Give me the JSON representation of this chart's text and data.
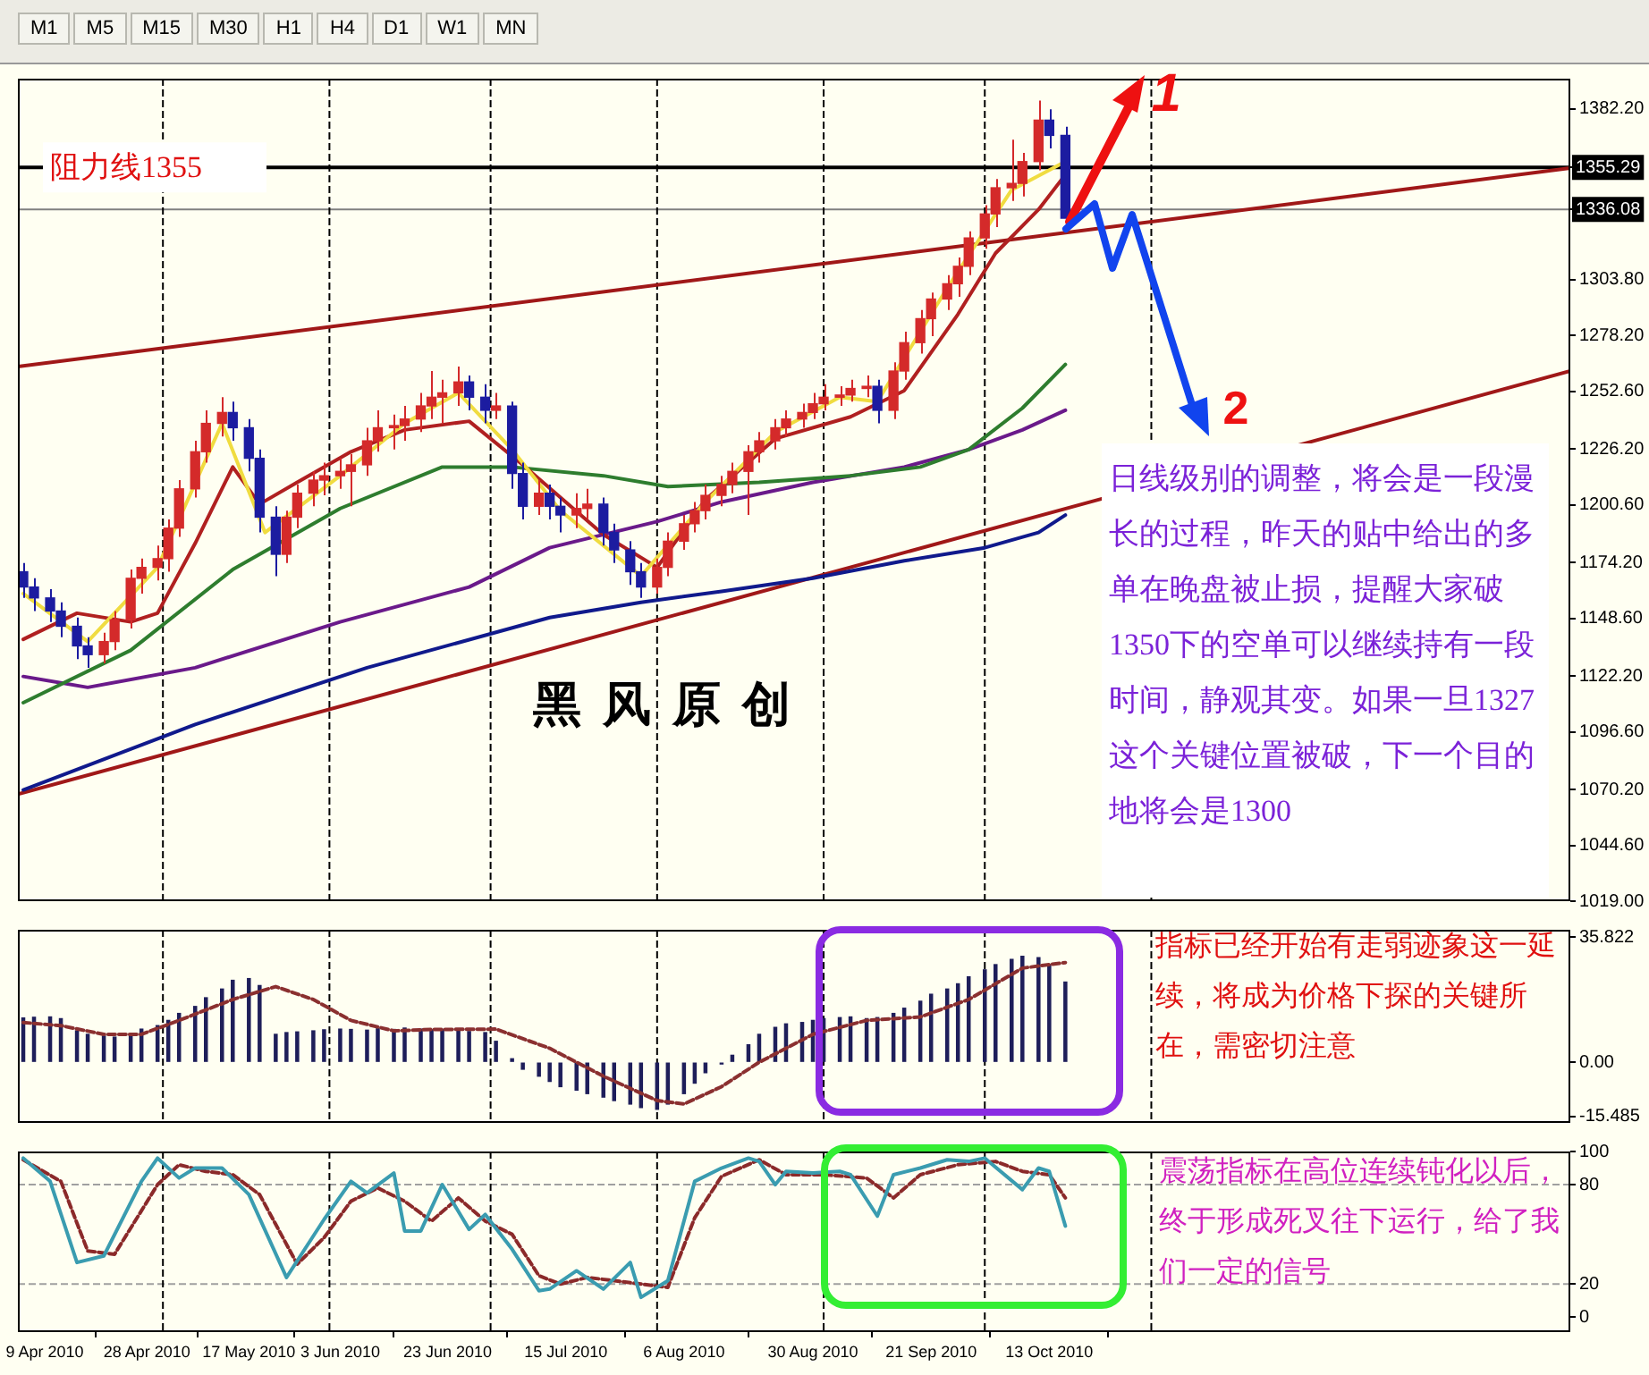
{
  "chart_data": [
    {
      "type": "other",
      "annotations": [
        "M1",
        "M5",
        "M15",
        "M30",
        "H1",
        "H4",
        "D1",
        "W1",
        "MN"
      ]
    },
    {
      "type": "candlestick",
      "x": [
        "2010-04-05",
        "2010-04-07",
        "2010-04-10",
        "2010-04-12",
        "2010-04-15",
        "2010-04-17",
        "2010-04-20",
        "2010-04-22",
        "2010-04-25",
        "2010-04-27",
        "2010-04-30",
        "2010-05-02",
        "2010-05-04",
        "2010-05-07",
        "2010-05-09",
        "2010-05-12",
        "2010-05-14",
        "2010-05-17",
        "2010-05-19",
        "2010-05-22",
        "2010-05-24",
        "2010-05-26",
        "2010-05-29",
        "2010-05-31",
        "2010-06-03",
        "2010-06-05",
        "2010-06-08",
        "2010-06-10",
        "2010-06-13",
        "2010-06-15",
        "2010-06-18",
        "2010-06-20",
        "2010-06-22",
        "2010-06-25",
        "2010-06-27",
        "2010-06-30",
        "2010-07-02",
        "2010-07-05",
        "2010-07-07",
        "2010-07-10",
        "2010-07-12",
        "2010-07-14",
        "2010-07-17",
        "2010-07-19",
        "2010-07-22",
        "2010-07-24",
        "2010-07-27",
        "2010-07-29",
        "2010-08-01",
        "2010-08-03",
        "2010-08-06",
        "2010-08-08",
        "2010-08-10",
        "2010-08-13",
        "2010-08-15",
        "2010-08-18",
        "2010-08-20",
        "2010-08-23",
        "2010-08-25",
        "2010-08-28",
        "2010-08-30",
        "2010-09-01",
        "2010-09-04",
        "2010-09-06",
        "2010-09-09",
        "2010-09-11",
        "2010-09-14",
        "2010-09-16",
        "2010-09-19",
        "2010-09-21",
        "2010-09-24",
        "2010-09-26",
        "2010-09-28",
        "2010-10-01",
        "2010-10-03",
        "2010-10-06",
        "2010-10-08",
        "2010-10-11",
        "2010-10-13",
        "2010-10-16"
      ],
      "ohlc": [
        [
          1170,
          1174,
          1158,
          1163
        ],
        [
          1163,
          1167,
          1152,
          1158
        ],
        [
          1158,
          1162,
          1147,
          1152
        ],
        [
          1152,
          1156,
          1140,
          1145
        ],
        [
          1145,
          1149,
          1130,
          1136
        ],
        [
          1136,
          1140,
          1126,
          1132
        ],
        [
          1132,
          1142,
          1128,
          1138
        ],
        [
          1138,
          1152,
          1134,
          1148
        ],
        [
          1148,
          1171,
          1144,
          1167
        ],
        [
          1167,
          1176,
          1160,
          1172
        ],
        [
          1172,
          1182,
          1166,
          1176
        ],
        [
          1176,
          1194,
          1170,
          1190
        ],
        [
          1190,
          1212,
          1186,
          1208
        ],
        [
          1208,
          1230,
          1204,
          1225
        ],
        [
          1225,
          1244,
          1220,
          1238
        ],
        [
          1238,
          1250,
          1232,
          1243
        ],
        [
          1243,
          1248,
          1230,
          1236
        ],
        [
          1236,
          1240,
          1216,
          1222
        ],
        [
          1222,
          1226,
          1188,
          1195
        ],
        [
          1195,
          1200,
          1168,
          1178
        ],
        [
          1178,
          1198,
          1174,
          1195
        ],
        [
          1195,
          1210,
          1190,
          1206
        ],
        [
          1206,
          1216,
          1200,
          1212
        ],
        [
          1212,
          1220,
          1205,
          1214
        ],
        [
          1214,
          1222,
          1208,
          1216
        ],
        [
          1216,
          1224,
          1200,
          1219
        ],
        [
          1219,
          1236,
          1214,
          1230
        ],
        [
          1230,
          1244,
          1225,
          1236
        ],
        [
          1236,
          1242,
          1226,
          1237
        ],
        [
          1237,
          1246,
          1230,
          1240
        ],
        [
          1240,
          1252,
          1234,
          1246
        ],
        [
          1246,
          1262,
          1240,
          1250
        ],
        [
          1250,
          1258,
          1238,
          1252
        ],
        [
          1252,
          1264,
          1246,
          1257
        ],
        [
          1257,
          1260,
          1244,
          1250
        ],
        [
          1250,
          1256,
          1238,
          1244
        ],
        [
          1244,
          1252,
          1240,
          1246
        ],
        [
          1246,
          1248,
          1208,
          1215
        ],
        [
          1215,
          1220,
          1194,
          1200
        ],
        [
          1200,
          1212,
          1196,
          1206
        ],
        [
          1206,
          1210,
          1194,
          1200
        ],
        [
          1200,
          1204,
          1188,
          1196
        ],
        [
          1196,
          1206,
          1190,
          1199
        ],
        [
          1199,
          1208,
          1194,
          1201
        ],
        [
          1201,
          1204,
          1182,
          1188
        ],
        [
          1188,
          1192,
          1174,
          1180
        ],
        [
          1180,
          1184,
          1164,
          1170
        ],
        [
          1170,
          1174,
          1158,
          1163
        ],
        [
          1163,
          1176,
          1160,
          1172
        ],
        [
          1172,
          1188,
          1168,
          1184
        ],
        [
          1184,
          1196,
          1180,
          1192
        ],
        [
          1192,
          1202,
          1188,
          1198
        ],
        [
          1198,
          1210,
          1194,
          1205
        ],
        [
          1205,
          1214,
          1200,
          1210
        ],
        [
          1210,
          1220,
          1206,
          1216
        ],
        [
          1216,
          1228,
          1196,
          1225
        ],
        [
          1225,
          1234,
          1220,
          1230
        ],
        [
          1230,
          1240,
          1226,
          1236
        ],
        [
          1236,
          1244,
          1232,
          1240
        ],
        [
          1240,
          1247,
          1236,
          1243
        ],
        [
          1243,
          1252,
          1240,
          1247
        ],
        [
          1247,
          1256,
          1244,
          1250
        ],
        [
          1250,
          1255,
          1246,
          1251
        ],
        [
          1251,
          1258,
          1248,
          1254
        ],
        [
          1254,
          1260,
          1250,
          1255
        ],
        [
          1255,
          1258,
          1238,
          1244
        ],
        [
          1244,
          1266,
          1240,
          1262
        ],
        [
          1262,
          1280,
          1258,
          1275
        ],
        [
          1275,
          1290,
          1270,
          1286
        ],
        [
          1286,
          1298,
          1278,
          1295
        ],
        [
          1295,
          1306,
          1290,
          1302
        ],
        [
          1302,
          1314,
          1296,
          1310
        ],
        [
          1310,
          1326,
          1306,
          1323
        ],
        [
          1323,
          1338,
          1318,
          1334
        ],
        [
          1334,
          1350,
          1328,
          1346
        ],
        [
          1346,
          1368,
          1340,
          1348
        ],
        [
          1348,
          1362,
          1342,
          1358
        ],
        [
          1358,
          1386,
          1354,
          1377
        ],
        [
          1377,
          1382,
          1364,
          1370
        ],
        [
          1370,
          1374,
          1328,
          1332
        ]
      ],
      "colors": [
        "#1c1ca0",
        "#1c1ca0",
        "#1c1ca0",
        "#1c1ca0",
        "#1c1ca0",
        "#1c1ca0",
        "#d42a2a",
        "#d42a2a",
        "#d42a2a",
        "#d42a2a",
        "#d42a2a",
        "#d42a2a",
        "#d42a2a",
        "#d42a2a",
        "#d42a2a",
        "#d42a2a",
        "#1c1ca0",
        "#1c1ca0",
        "#1c1ca0",
        "#1c1ca0",
        "#d42a2a",
        "#d42a2a",
        "#d42a2a",
        "#d42a2a",
        "#d42a2a",
        "#d42a2a",
        "#d42a2a",
        "#d42a2a",
        "#d42a2a",
        "#d42a2a",
        "#d42a2a",
        "#d42a2a",
        "#d42a2a",
        "#d42a2a",
        "#1c1ca0",
        "#1c1ca0",
        "#d42a2a",
        "#1c1ca0",
        "#1c1ca0",
        "#d42a2a",
        "#1c1ca0",
        "#1c1ca0",
        "#d42a2a",
        "#d42a2a",
        "#1c1ca0",
        "#1c1ca0",
        "#1c1ca0",
        "#1c1ca0",
        "#d42a2a",
        "#d42a2a",
        "#d42a2a",
        "#d42a2a",
        "#d42a2a",
        "#d42a2a",
        "#d42a2a",
        "#d42a2a",
        "#d42a2a",
        "#d42a2a",
        "#d42a2a",
        "#d42a2a",
        "#d42a2a",
        "#d42a2a",
        "#d42a2a",
        "#d42a2a",
        "#d42a2a",
        "#1c1ca0",
        "#d42a2a",
        "#d42a2a",
        "#d42a2a",
        "#d42a2a",
        "#d42a2a",
        "#d42a2a",
        "#d42a2a",
        "#d42a2a",
        "#d42a2a",
        "#d42a2a",
        "#d42a2a",
        "#d42a2a",
        "#1c1ca0",
        "#1c1ca0"
      ],
      "series": [
        {
          "type": "line",
          "color": "#f0dc40",
          "x": [
            "2010-04-05",
            "2010-04-17",
            "2010-04-30",
            "2010-05-12",
            "2010-05-20",
            "2010-06-03",
            "2010-06-15",
            "2010-06-25",
            "2010-07-05",
            "2010-07-14",
            "2010-07-29",
            "2010-08-10",
            "2010-08-23",
            "2010-09-04",
            "2010-09-11",
            "2010-09-24",
            "2010-10-06",
            "2010-10-16"
          ],
          "values": [
            1160,
            1138,
            1172,
            1238,
            1188,
            1214,
            1238,
            1252,
            1226,
            1198,
            1168,
            1202,
            1234,
            1250,
            1248,
            1300,
            1345,
            1358
          ]
        },
        {
          "type": "line",
          "color": "#b02020",
          "x": [
            "2010-04-05",
            "2010-04-15",
            "2010-04-25",
            "2010-04-30",
            "2010-05-07",
            "2010-05-14",
            "2010-05-19",
            "2010-05-26",
            "2010-06-05",
            "2010-06-15",
            "2010-06-27",
            "2010-07-07",
            "2010-07-22",
            "2010-08-01",
            "2010-08-10",
            "2010-08-23",
            "2010-09-06",
            "2010-09-16",
            "2010-09-26",
            "2010-10-03",
            "2010-10-11",
            "2010-10-16"
          ],
          "values": [
            1139,
            1151,
            1147,
            1151,
            1183,
            1218,
            1201,
            1211,
            1225,
            1235,
            1239,
            1219,
            1187,
            1172,
            1203,
            1231,
            1241,
            1253,
            1288,
            1316,
            1336,
            1352
          ]
        },
        {
          "type": "line",
          "color": "#2e7d2e",
          "x": [
            "2010-04-05",
            "2010-04-25",
            "2010-05-14",
            "2010-06-03",
            "2010-06-22",
            "2010-07-05",
            "2010-07-22",
            "2010-08-03",
            "2010-08-20",
            "2010-09-06",
            "2010-09-19",
            "2010-09-28",
            "2010-10-08",
            "2010-10-16"
          ],
          "values": [
            1110,
            1134,
            1171,
            1199,
            1218,
            1218,
            1214,
            1209,
            1211,
            1214,
            1218,
            1226,
            1245,
            1265
          ]
        },
        {
          "type": "line",
          "color": "#6a1a8a",
          "x": [
            "2010-04-05",
            "2010-04-17",
            "2010-05-07",
            "2010-06-03",
            "2010-06-27",
            "2010-07-12",
            "2010-08-01",
            "2010-08-13",
            "2010-08-30",
            "2010-09-16",
            "2010-09-28",
            "2010-10-08",
            "2010-10-16"
          ],
          "values": [
            1122,
            1117,
            1126,
            1147,
            1163,
            1181,
            1193,
            1202,
            1211,
            1218,
            1226,
            1235,
            1244
          ]
        },
        {
          "type": "line",
          "color": "#101a8c",
          "x": [
            "2010-04-05",
            "2010-05-07",
            "2010-06-08",
            "2010-07-12",
            "2010-07-29",
            "2010-08-13",
            "2010-08-30",
            "2010-09-16",
            "2010-10-01",
            "2010-10-11",
            "2010-10-16"
          ],
          "values": [
            1070,
            1100,
            1126,
            1149,
            1156,
            1161,
            1167,
            1175,
            1181,
            1188,
            1196
          ]
        },
        {
          "type": "line",
          "color": "#a01818",
          "x": [
            "2010-04-04",
            "2011-01-18"
          ],
          "values": [
            1264,
            1355
          ]
        },
        {
          "type": "line",
          "color": "#a01818",
          "x": [
            "2010-04-04",
            "2011-01-18"
          ],
          "values": [
            1068,
            1262
          ]
        }
      ],
      "xlim": [
        "2010-04-04",
        "2011-01-18"
      ],
      "ylim": [
        1019,
        1396
      ],
      "yticks": [
        {
          "value": 1382.2,
          "label": "1382.20"
        },
        {
          "value": 1355.29,
          "label": "1355.29"
        },
        {
          "value": 1336.08,
          "label": "1336.08"
        },
        {
          "value": 1303.8,
          "label": "1303.80"
        },
        {
          "value": 1278.2,
          "label": "1278.20"
        },
        {
          "value": 1252.6,
          "label": "1252.60"
        },
        {
          "value": 1226.2,
          "label": "1226.20"
        },
        {
          "value": 1200.6,
          "label": "1200.60"
        },
        {
          "value": 1174.2,
          "label": "1174.20"
        },
        {
          "value": 1148.6,
          "label": "1148.60"
        },
        {
          "value": 1122.2,
          "label": "1122.20"
        },
        {
          "value": 1096.6,
          "label": "1096.60"
        },
        {
          "value": 1070.2,
          "label": "1070.20"
        },
        {
          "value": 1044.6,
          "label": "1044.60"
        },
        {
          "value": 1019,
          "label": "1019.00"
        }
      ],
      "tick_labels": "y",
      "grid": false,
      "legend": false,
      "marker": "none",
      "ref_lines": [
        {
          "axis": "y",
          "value": 1355.29,
          "label": "阻力线1355",
          "color": "#000000"
        },
        {
          "axis": "y",
          "value": 1336.08,
          "color": "#808080"
        },
        {
          "axis": "x",
          "value": "2010-05-01",
          "color": "#000000",
          "line_style": "dashed"
        },
        {
          "axis": "x",
          "value": "2010-06-01",
          "color": "#000000",
          "line_style": "dashed"
        },
        {
          "axis": "x",
          "value": "2010-07-01",
          "color": "#000000",
          "line_style": "dashed"
        },
        {
          "axis": "x",
          "value": "2010-08-01",
          "color": "#000000",
          "line_style": "dashed"
        },
        {
          "axis": "x",
          "value": "2010-09-01",
          "color": "#000000",
          "line_style": "dashed"
        },
        {
          "axis": "x",
          "value": "2010-10-01",
          "color": "#000000",
          "line_style": "dashed"
        },
        {
          "axis": "x",
          "value": "2010-11-01",
          "color": "#000000",
          "line_style": "dashed"
        }
      ],
      "annotations": [
        {
          "text": "1",
          "x": "2010-10-22",
          "y": 1355.29
        },
        {
          "text": "2",
          "x": "2010-11-11",
          "y": 1216
        },
        "黑风原创",
        "日线级别的调整，将会是一段漫长的过程，昨天的贴中给出的多单在晚盘被止损，提醒大家破1350下的空单可以继续持有一段时间，静观其变。如果一旦1327这个关键位置被破，下一个目的地将会是1300"
      ]
    },
    {
      "type": "bar",
      "series": [
        {
          "color": "#1e1e5a",
          "x": [
            "2010-04-05",
            "2010-04-07",
            "2010-04-10",
            "2010-04-12",
            "2010-04-15",
            "2010-04-17",
            "2010-04-20",
            "2010-04-22",
            "2010-04-25",
            "2010-04-27",
            "2010-04-30",
            "2010-05-02",
            "2010-05-04",
            "2010-05-07",
            "2010-05-09",
            "2010-05-12",
            "2010-05-14",
            "2010-05-17",
            "2010-05-19",
            "2010-05-22",
            "2010-05-24",
            "2010-05-26",
            "2010-05-29",
            "2010-05-31",
            "2010-06-03",
            "2010-06-05",
            "2010-06-08",
            "2010-06-10",
            "2010-06-13",
            "2010-06-15",
            "2010-06-18",
            "2010-06-20",
            "2010-06-22",
            "2010-06-25",
            "2010-06-27",
            "2010-06-30",
            "2010-07-02",
            "2010-07-05",
            "2010-07-07",
            "2010-07-10",
            "2010-07-12",
            "2010-07-14",
            "2010-07-17",
            "2010-07-19",
            "2010-07-22",
            "2010-07-24",
            "2010-07-27",
            "2010-07-29",
            "2010-08-01",
            "2010-08-03",
            "2010-08-06",
            "2010-08-08",
            "2010-08-10",
            "2010-08-13",
            "2010-08-15",
            "2010-08-18",
            "2010-08-20",
            "2010-08-23",
            "2010-08-25",
            "2010-08-28",
            "2010-08-30",
            "2010-09-01",
            "2010-09-04",
            "2010-09-06",
            "2010-09-09",
            "2010-09-11",
            "2010-09-14",
            "2010-09-16",
            "2010-09-19",
            "2010-09-21",
            "2010-09-24",
            "2010-09-26",
            "2010-09-28",
            "2010-10-01",
            "2010-10-03",
            "2010-10-06",
            "2010-10-08",
            "2010-10-11",
            "2010-10-13",
            "2010-10-16"
          ],
          "values": [
            12.7,
            12.9,
            13,
            12.5,
            9,
            8,
            7.5,
            7.2,
            7.8,
            9.5,
            10.5,
            12,
            14,
            16,
            18.5,
            21,
            23.5,
            24,
            22,
            8,
            8.5,
            8.7,
            9,
            9.3,
            9.5,
            9.4,
            9.2,
            9.6,
            9.4,
            9.8,
            9.5,
            9.3,
            9.4,
            9.2,
            8.8,
            8.5,
            6,
            1,
            -2,
            -4,
            -5.5,
            -7,
            -8,
            -9,
            -10,
            -11,
            -12,
            -13,
            -13.5,
            -12,
            -9,
            -6,
            -3,
            -0.5,
            2,
            5,
            8,
            10,
            11,
            11.4,
            12,
            12.5,
            12.8,
            13,
            12.5,
            12.8,
            14,
            15.5,
            17.5,
            19.5,
            21,
            22.5,
            24.5,
            26.5,
            28,
            29.5,
            30.4,
            30,
            28,
            23
          ]
        },
        {
          "type": "line",
          "color": "#8b3030",
          "line_style": "dashed",
          "x": [
            "2010-04-05",
            "2010-04-12",
            "2010-04-20",
            "2010-04-27",
            "2010-05-04",
            "2010-05-14",
            "2010-05-22",
            "2010-05-29",
            "2010-06-05",
            "2010-06-13",
            "2010-06-20",
            "2010-07-02",
            "2010-07-12",
            "2010-07-22",
            "2010-08-01",
            "2010-08-06",
            "2010-08-13",
            "2010-08-20",
            "2010-08-30",
            "2010-09-09",
            "2010-09-19",
            "2010-09-28",
            "2010-10-08",
            "2010-10-16"
          ],
          "values": [
            11.4,
            10.5,
            8,
            8,
            12,
            18,
            21.7,
            18,
            12,
            9,
            9.4,
            9.5,
            4,
            -4,
            -11,
            -12,
            -7,
            0,
            8,
            12,
            13,
            18,
            27,
            28.6
          ]
        }
      ],
      "xlim": [
        "2010-04-04",
        "2011-01-18"
      ],
      "ylim": [
        -17.4,
        38
      ],
      "yticks": [
        35.822,
        {
          "value": 0,
          "label": "0.00"
        },
        -15.485
      ],
      "tick_labels": "y",
      "grid": false,
      "legend": false,
      "marker": "none",
      "ref_lines": [
        {
          "axis": "x",
          "value": "2010-05-01",
          "color": "#000000",
          "line_style": "dashed"
        },
        {
          "axis": "x",
          "value": "2010-06-01",
          "color": "#000000",
          "line_style": "dashed"
        },
        {
          "axis": "x",
          "value": "2010-07-01",
          "color": "#000000",
          "line_style": "dashed"
        },
        {
          "axis": "x",
          "value": "2010-08-01",
          "color": "#000000",
          "line_style": "dashed"
        },
        {
          "axis": "x",
          "value": "2010-09-01",
          "color": "#000000",
          "line_style": "dashed"
        },
        {
          "axis": "x",
          "value": "2010-10-01",
          "color": "#000000",
          "line_style": "dashed"
        },
        {
          "axis": "x",
          "value": "2010-11-01",
          "color": "#000000",
          "line_style": "dashed"
        }
      ],
      "annotations": [
        "指标已经开始有走弱迹象这一延续，将成为价格下探的关键所在，需密切注意"
      ]
    },
    {
      "type": "line",
      "series": [
        {
          "color": "#3a9cb0",
          "x": [
            "2010-04-05",
            "2010-04-10",
            "2010-04-15",
            "2010-04-20",
            "2010-04-27",
            "2010-04-30",
            "2010-05-04",
            "2010-05-07",
            "2010-05-12",
            "2010-05-17",
            "2010-05-24",
            "2010-05-29",
            "2010-05-31",
            "2010-06-05",
            "2010-06-08",
            "2010-06-13",
            "2010-06-15",
            "2010-06-18",
            "2010-06-22",
            "2010-06-27",
            "2010-06-30",
            "2010-07-05",
            "2010-07-10",
            "2010-07-12",
            "2010-07-17",
            "2010-07-22",
            "2010-07-27",
            "2010-07-29",
            "2010-08-03",
            "2010-08-08",
            "2010-08-13",
            "2010-08-18",
            "2010-08-20",
            "2010-08-23",
            "2010-08-25",
            "2010-08-30",
            "2010-09-04",
            "2010-09-06",
            "2010-09-11",
            "2010-09-14",
            "2010-09-19",
            "2010-09-24",
            "2010-09-28",
            "2010-10-01",
            "2010-10-08",
            "2010-10-11",
            "2010-10-13",
            "2010-10-16"
          ],
          "values": [
            96,
            82,
            33,
            37,
            82,
            96,
            84,
            90,
            90,
            74,
            24,
            49,
            59,
            82,
            75,
            87,
            52,
            52,
            80,
            53,
            62,
            41,
            16,
            17,
            28,
            17,
            33,
            12,
            22,
            82,
            90,
            96,
            94,
            80,
            88,
            87,
            88,
            86,
            61,
            86,
            90,
            95,
            94,
            96,
            77,
            90,
            88,
            55
          ]
        },
        {
          "color": "#8b2a2a",
          "line_style": "dashed",
          "x": [
            "2010-04-05",
            "2010-04-12",
            "2010-04-17",
            "2010-04-22",
            "2010-04-30",
            "2010-05-04",
            "2010-05-09",
            "2010-05-14",
            "2010-05-19",
            "2010-05-26",
            "2010-05-31",
            "2010-06-05",
            "2010-06-10",
            "2010-06-15",
            "2010-06-20",
            "2010-06-25",
            "2010-06-30",
            "2010-07-05",
            "2010-07-10",
            "2010-07-14",
            "2010-07-19",
            "2010-07-24",
            "2010-07-29",
            "2010-08-03",
            "2010-08-08",
            "2010-08-13",
            "2010-08-20",
            "2010-08-25",
            "2010-09-01",
            "2010-09-09",
            "2010-09-14",
            "2010-09-19",
            "2010-09-26",
            "2010-10-03",
            "2010-10-08",
            "2010-10-13",
            "2010-10-16"
          ],
          "values": [
            95,
            82,
            40,
            38,
            80,
            92,
            88,
            86,
            74,
            32,
            48,
            70,
            78,
            70,
            58,
            72,
            58,
            50,
            25,
            20,
            24,
            22,
            20,
            18,
            60,
            85,
            95,
            86,
            86,
            84,
            72,
            86,
            92,
            94,
            88,
            86,
            72
          ]
        }
      ],
      "xlim": [
        "2010-04-04",
        "2011-01-18"
      ],
      "ylim": [
        -9,
        100
      ],
      "yticks": [
        0,
        20,
        80,
        100
      ],
      "xticks": [
        {
          "value": "2010-04-09",
          "label": "9 Apr 2010"
        },
        {
          "value": "2010-04-28",
          "label": "28 Apr 2010"
        },
        {
          "value": "2010-05-17",
          "label": "17 May 2010"
        },
        {
          "value": "2010-06-03",
          "label": "3 Jun 2010"
        },
        {
          "value": "2010-06-23",
          "label": "23 Jun 2010"
        },
        {
          "value": "2010-07-15",
          "label": "15 Jul 2010"
        },
        {
          "value": "2010-08-06",
          "label": "6 Aug 2010"
        },
        {
          "value": "2010-08-30",
          "label": "30 Aug 2010"
        },
        {
          "value": "2010-09-21",
          "label": "21 Sep 2010"
        },
        {
          "value": "2010-10-13",
          "label": "13 Oct 2010"
        }
      ],
      "grid": false,
      "legend": false,
      "marker": "none",
      "ref_lines": [
        {
          "axis": "y",
          "value": 80,
          "color": "#a0a0a0",
          "line_style": "dashed"
        },
        {
          "axis": "y",
          "value": 20,
          "color": "#a0a0a0",
          "line_style": "dashed"
        },
        {
          "axis": "x",
          "value": "2010-05-01",
          "color": "#000000",
          "line_style": "dashed"
        },
        {
          "axis": "x",
          "value": "2010-06-01",
          "color": "#000000",
          "line_style": "dashed"
        },
        {
          "axis": "x",
          "value": "2010-07-01",
          "color": "#000000",
          "line_style": "dashed"
        },
        {
          "axis": "x",
          "value": "2010-08-01",
          "color": "#000000",
          "line_style": "dashed"
        },
        {
          "axis": "x",
          "value": "2010-09-01",
          "color": "#000000",
          "line_style": "dashed"
        },
        {
          "axis": "x",
          "value": "2010-10-01",
          "color": "#000000",
          "line_style": "dashed"
        },
        {
          "axis": "x",
          "value": "2010-11-01",
          "color": "#000000",
          "line_style": "dashed"
        }
      ],
      "annotations": [
        "震荡指标在高位连续钝化以后，终于形成死叉往下运行，给了我们一定的信号"
      ]
    }
  ]
}
